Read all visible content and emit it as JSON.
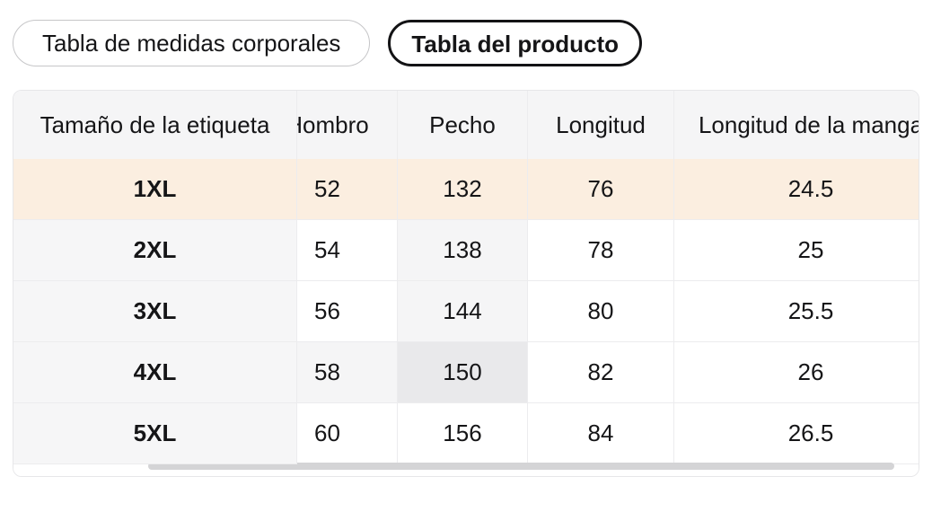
{
  "tabs": [
    {
      "label": "Tabla de medidas corporales",
      "selected": false
    },
    {
      "label": "Tabla del producto",
      "selected": true
    }
  ],
  "size_table": {
    "columns": [
      "Tamaño de la etiqueta",
      "Hombro",
      "Pecho",
      "Longitud",
      "Longitud de la manga"
    ],
    "rows": [
      {
        "label": "1XL",
        "values": [
          "52",
          "132",
          "76",
          "24.5"
        ],
        "state": "selected"
      },
      {
        "label": "2XL",
        "values": [
          "54",
          "138",
          "78",
          "25"
        ],
        "state": "normal"
      },
      {
        "label": "3XL",
        "values": [
          "56",
          "144",
          "80",
          "25.5"
        ],
        "state": "normal"
      },
      {
        "label": "4XL",
        "values": [
          "58",
          "150",
          "82",
          "26"
        ],
        "state": "normal"
      },
      {
        "label": "5XL",
        "values": [
          "60",
          "156",
          "84",
          "26.5"
        ],
        "state": "normal"
      }
    ],
    "highlight": {
      "selected_row_index": 0,
      "hover_cell": {
        "row_index": 3,
        "col_index": 2,
        "row": "4XL",
        "column": "Pecho",
        "value": "150"
      },
      "hover_row_trail": [
        {
          "row_index": 3,
          "col_index": 1
        }
      ],
      "hover_col_trail": [
        {
          "row_index": 1,
          "col_index": 2
        },
        {
          "row_index": 2,
          "col_index": 2
        }
      ]
    }
  },
  "colors": {
    "selected_row_bg": "#fbeee0",
    "header_bg": "#f5f5f6",
    "first_column_bg": "#f6f6f7",
    "hover_trail_bg": "#f5f5f6",
    "hover_cell_bg": "#e9e9eb",
    "divider": "#ececee",
    "card_border": "#e7e7e9",
    "active_tab_border": "#131315",
    "inactive_tab_border": "#c6c6c8",
    "scrollbar_thumb": "#d4d4d6",
    "text": "#151517"
  }
}
